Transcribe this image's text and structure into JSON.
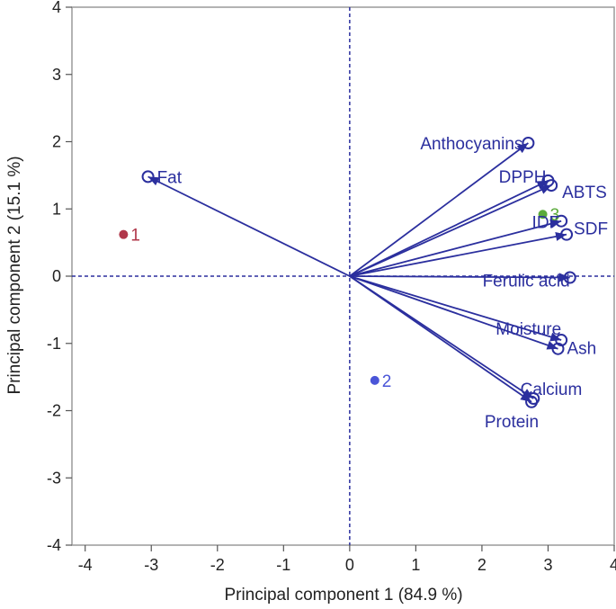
{
  "chart_data": {
    "type": "biplot",
    "xlabel": "Principal component 1  (84.9 %)",
    "ylabel": "Principal component 2  (15.1 %)",
    "xlim": [
      -4.2,
      4
    ],
    "ylim": [
      -4,
      4
    ],
    "xticks": [
      -4,
      -3,
      -2,
      -1,
      0,
      1,
      2,
      3,
      4
    ],
    "yticks": [
      -4,
      -3,
      -2,
      -1,
      0,
      1,
      2,
      3,
      4
    ],
    "xtick_labels": [
      "-4",
      "-3",
      "-2",
      "-1",
      "0",
      "1",
      "2",
      "3",
      "4"
    ],
    "ytick_labels": [
      "-4",
      "-3",
      "-2",
      "-1",
      "0",
      "1",
      "2",
      "3",
      "4"
    ],
    "colors": {
      "vector": "#2b2f9e",
      "frame": "#9a9a9a",
      "zero_line": "#2b2f9e"
    },
    "variables": [
      {
        "name": "Fat",
        "x": -3.05,
        "y": 1.48
      },
      {
        "name": "Anthocyanins",
        "x": 2.7,
        "y": 1.98
      },
      {
        "name": "DPPH",
        "x": 3.0,
        "y": 1.42
      },
      {
        "name": "ABTS",
        "x": 3.05,
        "y": 1.35
      },
      {
        "name": "IDF",
        "x": 3.2,
        "y": 0.82
      },
      {
        "name": "SDF",
        "x": 3.28,
        "y": 0.62
      },
      {
        "name": "Ferulic acid",
        "x": 3.33,
        "y": -0.02
      },
      {
        "name": "Moisture",
        "x": 3.2,
        "y": -0.95
      },
      {
        "name": "Ash",
        "x": 3.15,
        "y": -1.08
      },
      {
        "name": "Calcium",
        "x": 2.78,
        "y": -1.82
      },
      {
        "name": "Protein",
        "x": 2.75,
        "y": -1.87
      }
    ],
    "samples": [
      {
        "label": "1",
        "x": -3.42,
        "y": 0.62,
        "color": "#b0374a"
      },
      {
        "label": "2",
        "x": 0.38,
        "y": -1.55,
        "color": "#4a55d8"
      },
      {
        "label": "3",
        "x": 2.92,
        "y": 0.92,
        "color": "#5aaa3a"
      }
    ]
  }
}
